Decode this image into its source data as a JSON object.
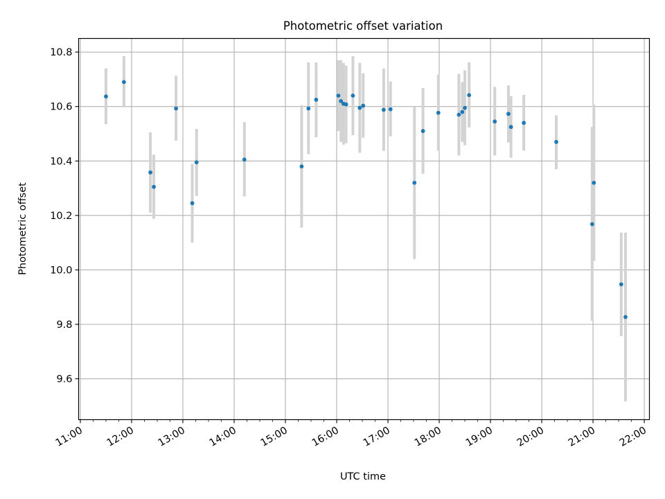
{
  "chart_data": {
    "type": "scatter",
    "title": "Photometric offset variation",
    "xlabel": "UTC time",
    "ylabel": "Photometric offset",
    "xlim": [
      "10:58",
      "22:06"
    ],
    "ylim": [
      9.45,
      10.85
    ],
    "x_ticks": [
      "11:00",
      "12:00",
      "13:00",
      "14:00",
      "15:00",
      "16:00",
      "17:00",
      "18:00",
      "19:00",
      "20:00",
      "21:00",
      "22:00"
    ],
    "y_ticks": [
      "9.6",
      "9.8",
      "10.0",
      "10.2",
      "10.4",
      "10.6",
      "10.8"
    ],
    "grid": true,
    "colors": {
      "marker": "#1f77b4",
      "errorbar": "#d3d3d3",
      "grid": "#b0b0b0"
    },
    "series": [
      {
        "points": [
          {
            "t": "11:30",
            "y": 10.637,
            "lo": 10.535,
            "hi": 10.74
          },
          {
            "t": "11:51",
            "y": 10.69,
            "lo": 10.597,
            "hi": 10.785
          },
          {
            "t": "12:22",
            "y": 10.358,
            "lo": 10.21,
            "hi": 10.505
          },
          {
            "t": "12:26",
            "y": 10.305,
            "lo": 10.188,
            "hi": 10.423
          },
          {
            "t": "12:52",
            "y": 10.593,
            "lo": 10.475,
            "hi": 10.713
          },
          {
            "t": "13:11",
            "y": 10.245,
            "lo": 10.1,
            "hi": 10.39
          },
          {
            "t": "13:16",
            "y": 10.395,
            "lo": 10.272,
            "hi": 10.518
          },
          {
            "t": "14:12",
            "y": 10.405,
            "lo": 10.27,
            "hi": 10.543
          },
          {
            "t": "15:19",
            "y": 10.38,
            "lo": 10.155,
            "hi": 10.605
          },
          {
            "t": "15:27",
            "y": 10.593,
            "lo": 10.425,
            "hi": 10.762
          },
          {
            "t": "15:36",
            "y": 10.625,
            "lo": 10.487,
            "hi": 10.762
          },
          {
            "t": "16:02",
            "y": 10.64,
            "lo": 10.51,
            "hi": 10.77
          },
          {
            "t": "16:05",
            "y": 10.62,
            "lo": 10.47,
            "hi": 10.77
          },
          {
            "t": "16:08",
            "y": 10.61,
            "lo": 10.46,
            "hi": 10.76
          },
          {
            "t": "16:11",
            "y": 10.608,
            "lo": 10.465,
            "hi": 10.75
          },
          {
            "t": "16:19",
            "y": 10.64,
            "lo": 10.495,
            "hi": 10.785
          },
          {
            "t": "16:27",
            "y": 10.595,
            "lo": 10.43,
            "hi": 10.76
          },
          {
            "t": "16:31",
            "y": 10.603,
            "lo": 10.485,
            "hi": 10.722
          },
          {
            "t": "16:55",
            "y": 10.588,
            "lo": 10.437,
            "hi": 10.74
          },
          {
            "t": "17:03",
            "y": 10.59,
            "lo": 10.49,
            "hi": 10.692
          },
          {
            "t": "17:31",
            "y": 10.32,
            "lo": 10.04,
            "hi": 10.6
          },
          {
            "t": "17:41",
            "y": 10.51,
            "lo": 10.353,
            "hi": 10.668
          },
          {
            "t": "17:59",
            "y": 10.577,
            "lo": 10.437,
            "hi": 10.718
          },
          {
            "t": "18:23",
            "y": 10.57,
            "lo": 10.42,
            "hi": 10.72
          },
          {
            "t": "18:27",
            "y": 10.58,
            "lo": 10.47,
            "hi": 10.69
          },
          {
            "t": "18:30",
            "y": 10.595,
            "lo": 10.458,
            "hi": 10.733
          },
          {
            "t": "18:35",
            "y": 10.642,
            "lo": 10.523,
            "hi": 10.762
          },
          {
            "t": "19:05",
            "y": 10.545,
            "lo": 10.42,
            "hi": 10.672
          },
          {
            "t": "19:21",
            "y": 10.573,
            "lo": 10.468,
            "hi": 10.678
          },
          {
            "t": "19:24",
            "y": 10.525,
            "lo": 10.412,
            "hi": 10.638
          },
          {
            "t": "19:39",
            "y": 10.54,
            "lo": 10.438,
            "hi": 10.643
          },
          {
            "t": "20:17",
            "y": 10.47,
            "lo": 10.37,
            "hi": 10.567
          },
          {
            "t": "20:59",
            "y": 10.168,
            "lo": 9.813,
            "hi": 10.525
          },
          {
            "t": "21:01",
            "y": 10.32,
            "lo": 10.033,
            "hi": 10.607
          },
          {
            "t": "21:33",
            "y": 9.947,
            "lo": 9.757,
            "hi": 10.137
          },
          {
            "t": "21:38",
            "y": 9.827,
            "lo": 9.517,
            "hi": 10.137
          }
        ]
      }
    ]
  }
}
